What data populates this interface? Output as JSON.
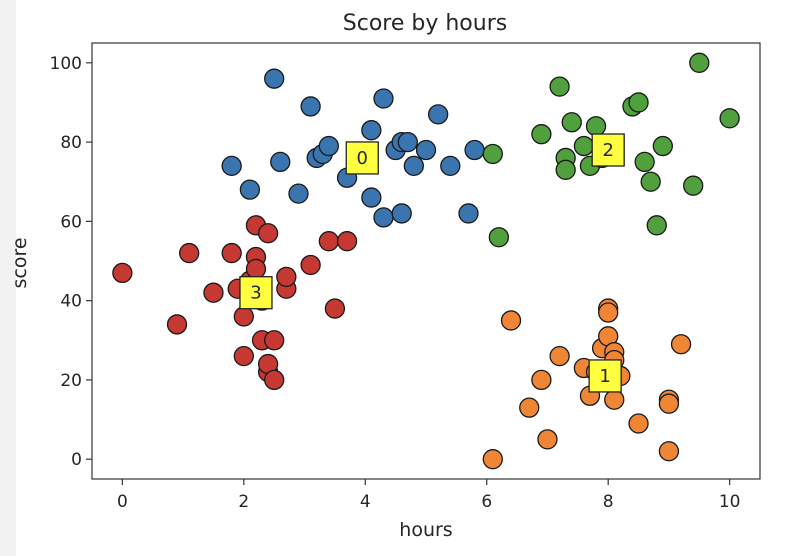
{
  "chart_data": {
    "type": "scatter",
    "title": "Score by hours",
    "xlabel": "hours",
    "ylabel": "score",
    "xlim": [
      -0.5,
      10.5
    ],
    "ylim": [
      -5,
      105
    ],
    "xticks": [
      0,
      2,
      4,
      6,
      8,
      10
    ],
    "yticks": [
      0,
      20,
      40,
      60,
      80,
      100
    ],
    "grid": false,
    "legend": "none",
    "series": [
      {
        "color": "#3b75af",
        "points": [
          [
            1.8,
            74
          ],
          [
            2.1,
            68
          ],
          [
            2.5,
            96
          ],
          [
            2.6,
            75
          ],
          [
            2.9,
            67
          ],
          [
            3.1,
            89
          ],
          [
            3.2,
            76
          ],
          [
            3.3,
            77
          ],
          [
            3.4,
            79
          ],
          [
            3.7,
            71
          ],
          [
            4.1,
            83
          ],
          [
            4.1,
            66
          ],
          [
            4.3,
            91
          ],
          [
            4.3,
            61
          ],
          [
            4.5,
            78
          ],
          [
            4.6,
            80
          ],
          [
            4.6,
            62
          ],
          [
            4.7,
            80
          ],
          [
            4.8,
            74
          ],
          [
            5.0,
            78
          ],
          [
            5.2,
            87
          ],
          [
            5.4,
            74
          ],
          [
            5.7,
            62
          ],
          [
            5.8,
            78
          ]
        ]
      },
      {
        "color": "#ef8636",
        "points": [
          [
            6.1,
            0
          ],
          [
            6.4,
            35
          ],
          [
            6.7,
            13
          ],
          [
            6.9,
            20
          ],
          [
            7.0,
            5
          ],
          [
            7.2,
            26
          ],
          [
            7.6,
            23
          ],
          [
            7.7,
            16
          ],
          [
            7.8,
            22
          ],
          [
            7.9,
            28
          ],
          [
            8.0,
            31
          ],
          [
            8.0,
            38
          ],
          [
            8.0,
            37
          ],
          [
            8.1,
            27
          ],
          [
            8.1,
            25
          ],
          [
            8.1,
            15
          ],
          [
            8.2,
            21
          ],
          [
            8.5,
            9
          ],
          [
            9.0,
            15
          ],
          [
            9.0,
            14
          ],
          [
            9.0,
            2
          ],
          [
            9.2,
            29
          ]
        ]
      },
      {
        "color": "#51a03e",
        "points": [
          [
            6.1,
            77
          ],
          [
            6.2,
            56
          ],
          [
            6.9,
            82
          ],
          [
            7.2,
            94
          ],
          [
            7.3,
            76
          ],
          [
            7.3,
            73
          ],
          [
            7.4,
            85
          ],
          [
            7.6,
            79
          ],
          [
            7.7,
            74
          ],
          [
            7.8,
            84
          ],
          [
            7.9,
            76
          ],
          [
            8.0,
            77
          ],
          [
            8.4,
            89
          ],
          [
            8.5,
            90
          ],
          [
            8.6,
            75
          ],
          [
            8.7,
            70
          ],
          [
            8.8,
            59
          ],
          [
            8.9,
            79
          ],
          [
            9.4,
            69
          ],
          [
            9.5,
            100
          ],
          [
            10.0,
            86
          ]
        ]
      },
      {
        "color": "#c53932",
        "points": [
          [
            0,
            47
          ],
          [
            0.9,
            34
          ],
          [
            1.1,
            52
          ],
          [
            1.5,
            42
          ],
          [
            1.8,
            52
          ],
          [
            1.9,
            43
          ],
          [
            2.0,
            36
          ],
          [
            2.0,
            26
          ],
          [
            2.1,
            45
          ],
          [
            2.2,
            51
          ],
          [
            2.2,
            59
          ],
          [
            2.2,
            48
          ],
          [
            2.3,
            40
          ],
          [
            2.3,
            30
          ],
          [
            2.4,
            57
          ],
          [
            2.4,
            22
          ],
          [
            2.4,
            24
          ],
          [
            2.5,
            30
          ],
          [
            2.5,
            20
          ],
          [
            2.7,
            43
          ],
          [
            2.7,
            46
          ],
          [
            3.1,
            49
          ],
          [
            3.4,
            55
          ],
          [
            3.5,
            38
          ],
          [
            3.7,
            55
          ]
        ]
      }
    ],
    "cluster_labels": [
      {
        "label": "0",
        "x": 3.95,
        "y": 76
      },
      {
        "label": "1",
        "x": 7.95,
        "y": 21
      },
      {
        "label": "2",
        "x": 8.0,
        "y": 78
      },
      {
        "label": "3",
        "x": 2.2,
        "y": 42
      }
    ],
    "marker_edge_color": "#1a1a1a",
    "cluster_label_fill": "#ffff40"
  }
}
